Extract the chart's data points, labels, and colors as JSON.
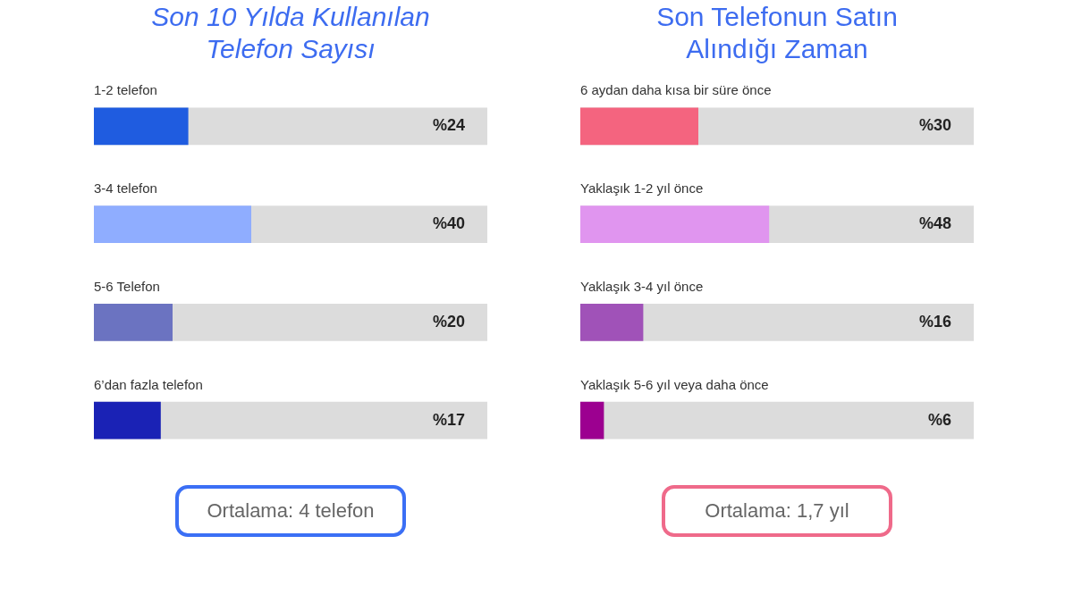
{
  "chart_data": [
    {
      "type": "bar",
      "orientation": "horizontal",
      "title": "Son 10 Yılda Kullanılan Telefon Sayısı",
      "categories": [
        "1-2 telefon",
        "3-4 telefon",
        "5-6 Telefon",
        "6’dan fazla telefon"
      ],
      "values": [
        24,
        40,
        20,
        17
      ],
      "colors": [
        "#1f5ce0",
        "#8fadff",
        "#6b73c1",
        "#1a22b5"
      ],
      "value_labels": [
        "%24",
        "%40",
        "%20",
        "%17"
      ],
      "xlim": [
        0,
        100
      ],
      "tick_labels": false,
      "annotations": [
        "Ortalama: 4 telefon"
      ]
    },
    {
      "type": "bar",
      "orientation": "horizontal",
      "title": "Son Telefonun Satın Alındığı Zaman",
      "categories": [
        "6 aydan daha kısa bir süre önce",
        "Yaklaşık 1-2 yıl önce",
        "Yaklaşık 3-4 yıl önce",
        "Yaklaşık 5-6 yıl veya daha önce"
      ],
      "values": [
        30,
        48,
        16,
        6
      ],
      "colors": [
        "#f4647f",
        "#e095ef",
        "#a052b8",
        "#9c0090"
      ],
      "value_labels": [
        "%30",
        "%48",
        "%16",
        "%6"
      ],
      "xlim": [
        0,
        100
      ],
      "tick_labels": false,
      "annotations": [
        "Ortalama: 1,7 yıl"
      ]
    }
  ]
}
